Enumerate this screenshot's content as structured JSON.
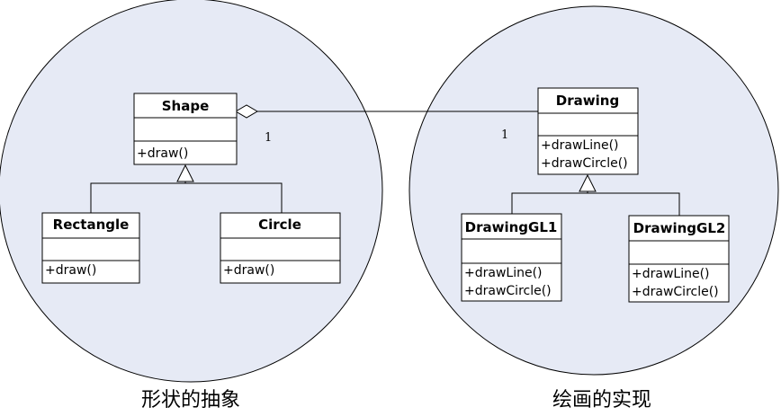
{
  "diagram": {
    "groups": {
      "abstraction": {
        "caption": "形状的抽象",
        "fill": "#e6eaf5"
      },
      "implementation": {
        "caption": "绘画的实现",
        "fill": "#e6eaf5"
      }
    },
    "classes": {
      "shape": {
        "name": "Shape",
        "operations": [
          "+draw()"
        ]
      },
      "rectangle": {
        "name": "Rectangle",
        "operations": [
          "+draw()"
        ]
      },
      "circle": {
        "name": "Circle",
        "operations": [
          "+draw()"
        ]
      },
      "drawing": {
        "name": "Drawing",
        "operations": [
          "+drawLine()",
          "+drawCircle()"
        ]
      },
      "drawinggl1": {
        "name": "DrawingGL1",
        "operations": [
          "+drawLine()",
          "+drawCircle()"
        ]
      },
      "drawinggl2": {
        "name": "DrawingGL2",
        "operations": [
          "+drawLine()",
          "+drawCircle()"
        ]
      }
    },
    "association": {
      "type": "aggregation",
      "source_multiplicity": "1",
      "target_multiplicity": "1"
    },
    "generalizations": [
      {
        "parent": "Shape",
        "children": [
          "Rectangle",
          "Circle"
        ]
      },
      {
        "parent": "Drawing",
        "children": [
          "DrawingGL1",
          "DrawingGL2"
        ]
      }
    ]
  }
}
